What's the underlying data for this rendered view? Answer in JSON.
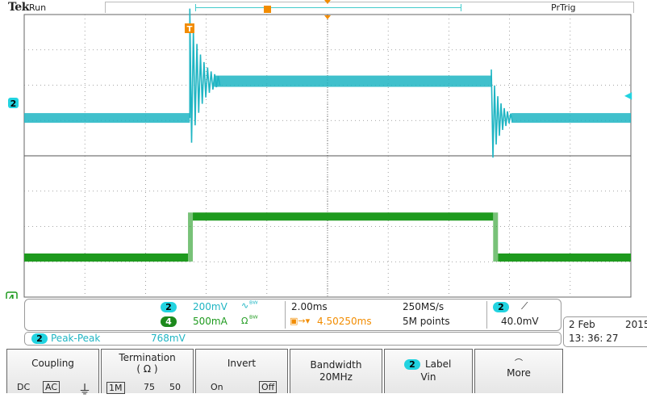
{
  "brand": "Tek",
  "acquisition_state": "Run",
  "trigger_status": "PrTrig",
  "markers": {
    "channel2_ground": "2",
    "channel4_ground": "4",
    "trigger_position": "T",
    "trigger_level": "◀"
  },
  "vertical_settings": [
    {
      "channel": "2",
      "scale": "200mV",
      "coupling_icon": "∿",
      "bw_icon": "ᴮᵂ"
    },
    {
      "channel": "4",
      "scale": "500mA",
      "coupling_icon": "Ω",
      "bw_icon": "ᴮᵂ"
    }
  ],
  "horizontal": {
    "time_scale": "2.00ms",
    "delay": "4.50250ms",
    "sample_rate": "250MS/s",
    "record_length": "5M points"
  },
  "trigger": {
    "source": "2",
    "slope_icon": "⟋",
    "level": "40.0mV"
  },
  "measurement": {
    "channel": "2",
    "name": "Peak-Peak",
    "value": "768mV"
  },
  "datetime": {
    "date": "2 Feb",
    "year": "2015",
    "time": "13: 36: 27"
  },
  "menu": {
    "coupling": {
      "label": "Coupling",
      "options": [
        "DC",
        "AC",
        "⏚"
      ],
      "selected": "AC"
    },
    "termination": {
      "label": "Termination",
      "unit": "( Ω )",
      "options": [
        "1M",
        "75",
        "50"
      ],
      "selected": "1M"
    },
    "invert": {
      "label": "Invert",
      "options": [
        "On",
        "Off"
      ],
      "selected": "Off"
    },
    "bandwidth": {
      "label": "Bandwidth",
      "value": "20MHz"
    },
    "label": {
      "channel": "2",
      "label": "Label",
      "value": "Vin"
    },
    "more": {
      "label": "More"
    }
  },
  "colors": {
    "channel2": "#1fb5c3",
    "channel4": "#1e9a1e",
    "trigger_marker": "#f28c00",
    "grid": "#888888"
  }
}
